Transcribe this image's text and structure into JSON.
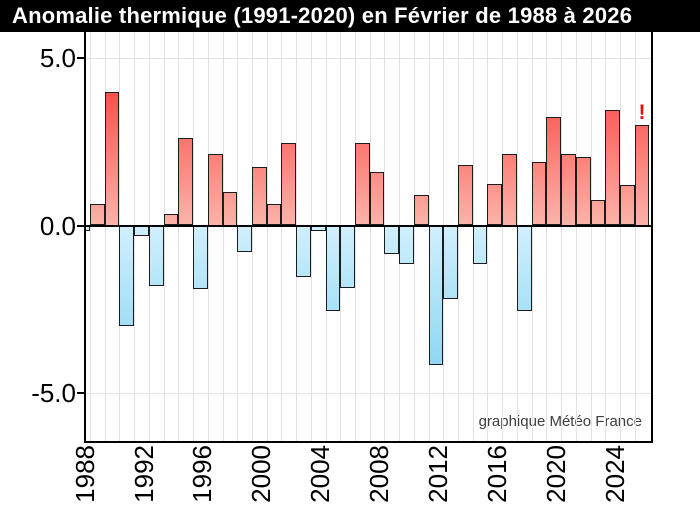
{
  "window": {
    "title": "Anomalie thermique (1991-2020) en Février de 1988 à 2026"
  },
  "credit": "graphique Météo France",
  "chart_data": {
    "type": "bar",
    "title": "Anomalie thermique (1991-2020) en Février de 1988 à 2026",
    "categories": [
      1988,
      1989,
      1990,
      1991,
      1992,
      1993,
      1994,
      1995,
      1996,
      1997,
      1998,
      1999,
      2000,
      2001,
      2002,
      2003,
      2004,
      2005,
      2006,
      2007,
      2008,
      2009,
      2010,
      2011,
      2012,
      2013,
      2014,
      2015,
      2016,
      2017,
      2018,
      2019,
      2020,
      2021,
      2022,
      2023,
      2024,
      2025,
      2026
    ],
    "values": [
      -0.15,
      0.65,
      4.0,
      -3.0,
      -0.3,
      -1.8,
      0.35,
      2.6,
      -1.9,
      2.15,
      1.0,
      -0.8,
      1.75,
      0.65,
      2.45,
      -1.55,
      -0.15,
      -2.55,
      -1.85,
      2.45,
      1.6,
      -0.85,
      -1.15,
      0.9,
      -4.15,
      -2.2,
      1.8,
      -1.15,
      1.25,
      2.15,
      -2.55,
      1.9,
      3.25,
      2.15,
      2.05,
      0.75,
      3.45,
      1.2,
      3.0
    ],
    "xlabel": "",
    "ylabel": "",
    "ylim": [
      -6.45,
      5.8
    ],
    "yticks": [
      {
        "value": 5,
        "label": "5.0"
      },
      {
        "value": 0,
        "label": "0.0"
      },
      {
        "value": -5,
        "label": "-5.0"
      }
    ],
    "xtick_labels": [
      "1988",
      "1992",
      "1996",
      "2000",
      "2004",
      "2008",
      "2012",
      "2016",
      "2020",
      "2024"
    ],
    "grid": {
      "vertical": "one line per year",
      "horizontal_at": [
        5,
        -5
      ]
    },
    "legend": "none",
    "annotation": {
      "year": 2026,
      "label": "!",
      "color": "#e90f0f"
    },
    "colors": {
      "positive_pale": "#fcb3a9",
      "positive_deep": "#fb4a46",
      "negative_pale": "#d0effc",
      "negative_deep": "#8dd7f3",
      "bar_border": "#1c1c1c",
      "zero_line": "#000000",
      "gridline": "#e2e2e2",
      "title_bg": "#000000",
      "title_text": "#ffffff",
      "credit_text": "#3d3d3d"
    }
  }
}
